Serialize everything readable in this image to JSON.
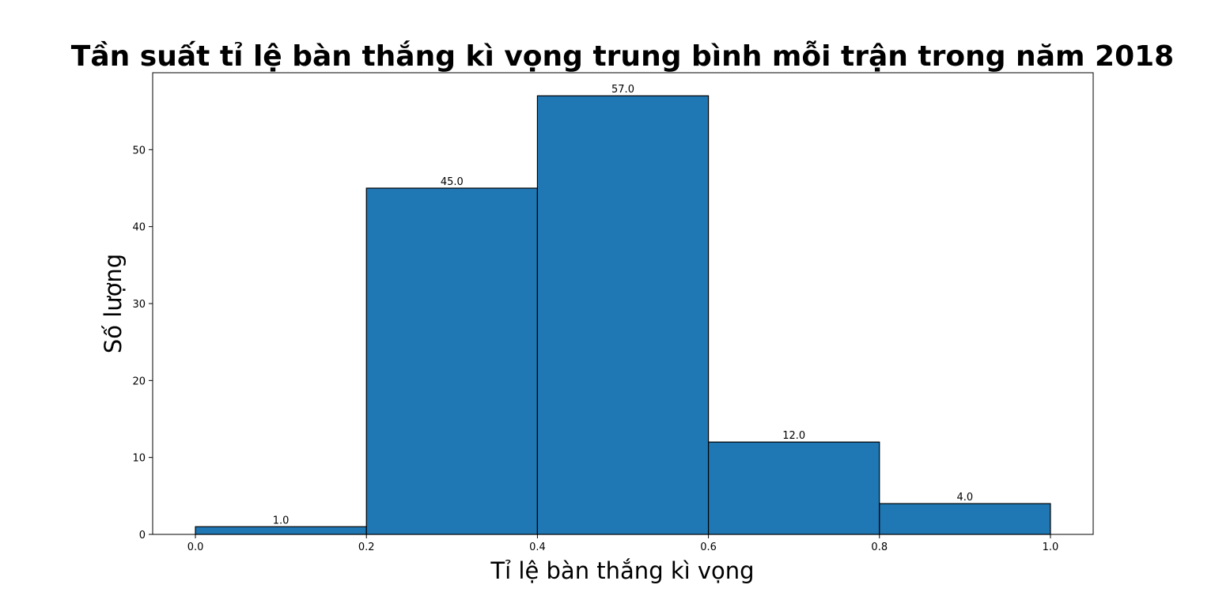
{
  "chart_data": {
    "type": "bar",
    "title": "Tần suất tỉ lệ bàn thắng kì vọng trung bình mỗi trận trong năm 2018",
    "xlabel": "Tỉ lệ bàn thắng kì vọng",
    "ylabel": "Số lượng",
    "bins": [
      {
        "start": 0.0,
        "end": 0.2,
        "value": 1,
        "label": "1.0"
      },
      {
        "start": 0.2,
        "end": 0.4,
        "value": 45,
        "label": "45.0"
      },
      {
        "start": 0.4,
        "end": 0.6,
        "value": 57,
        "label": "57.0"
      },
      {
        "start": 0.6,
        "end": 0.8,
        "value": 12,
        "label": "12.0"
      },
      {
        "start": 0.8,
        "end": 1.0,
        "value": 4,
        "label": "4.0"
      }
    ],
    "xlim": [
      -0.05,
      1.05
    ],
    "ylim": [
      0,
      60
    ],
    "xticks": [
      "0.0",
      "0.2",
      "0.4",
      "0.6",
      "0.8",
      "1.0"
    ],
    "yticks": [
      "0",
      "10",
      "20",
      "30",
      "40",
      "50"
    ],
    "bar_color": "#1f77b4",
    "edge_color": "#000000",
    "grid": false,
    "legend": "none"
  }
}
